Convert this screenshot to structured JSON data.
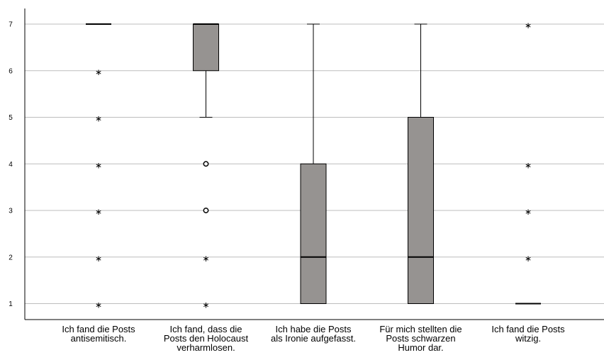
{
  "chart_data": {
    "type": "boxplot",
    "y_ticks": [
      "1",
      "2",
      "3",
      "4",
      "5",
      "6",
      "7"
    ],
    "ylim": [
      1,
      7
    ],
    "grid": true,
    "categories": [
      {
        "label_lines": [
          "Ich fand die Posts",
          "antisemitisch."
        ],
        "min": 7,
        "q1": 7,
        "median": 7,
        "q3": 7,
        "max": 7,
        "outliers": [],
        "extremes": [
          6,
          5,
          4,
          3,
          2,
          1
        ]
      },
      {
        "label_lines": [
          "Ich fand, dass die",
          "Posts den Holocaust",
          "verharmlosen."
        ],
        "min": 5,
        "q1": 6,
        "median": 7,
        "q3": 7,
        "max": 7,
        "outliers": [
          4,
          3
        ],
        "extremes": [
          2,
          1
        ]
      },
      {
        "label_lines": [
          "Ich habe die Posts",
          "als Ironie aufgefasst."
        ],
        "min": 1,
        "q1": 1,
        "median": 2,
        "q3": 4,
        "max": 7,
        "outliers": [],
        "extremes": []
      },
      {
        "label_lines": [
          "Für mich stellten die",
          "Posts schwarzen",
          "Humor dar."
        ],
        "min": 1,
        "q1": 1,
        "median": 2,
        "q3": 5,
        "max": 7,
        "outliers": [],
        "extremes": []
      },
      {
        "label_lines": [
          "Ich fand die Posts",
          "witzig."
        ],
        "min": 1,
        "q1": 1,
        "median": 1,
        "q3": 1,
        "max": 1,
        "outliers": [],
        "extremes": [
          7,
          4,
          3,
          2
        ]
      }
    ]
  }
}
